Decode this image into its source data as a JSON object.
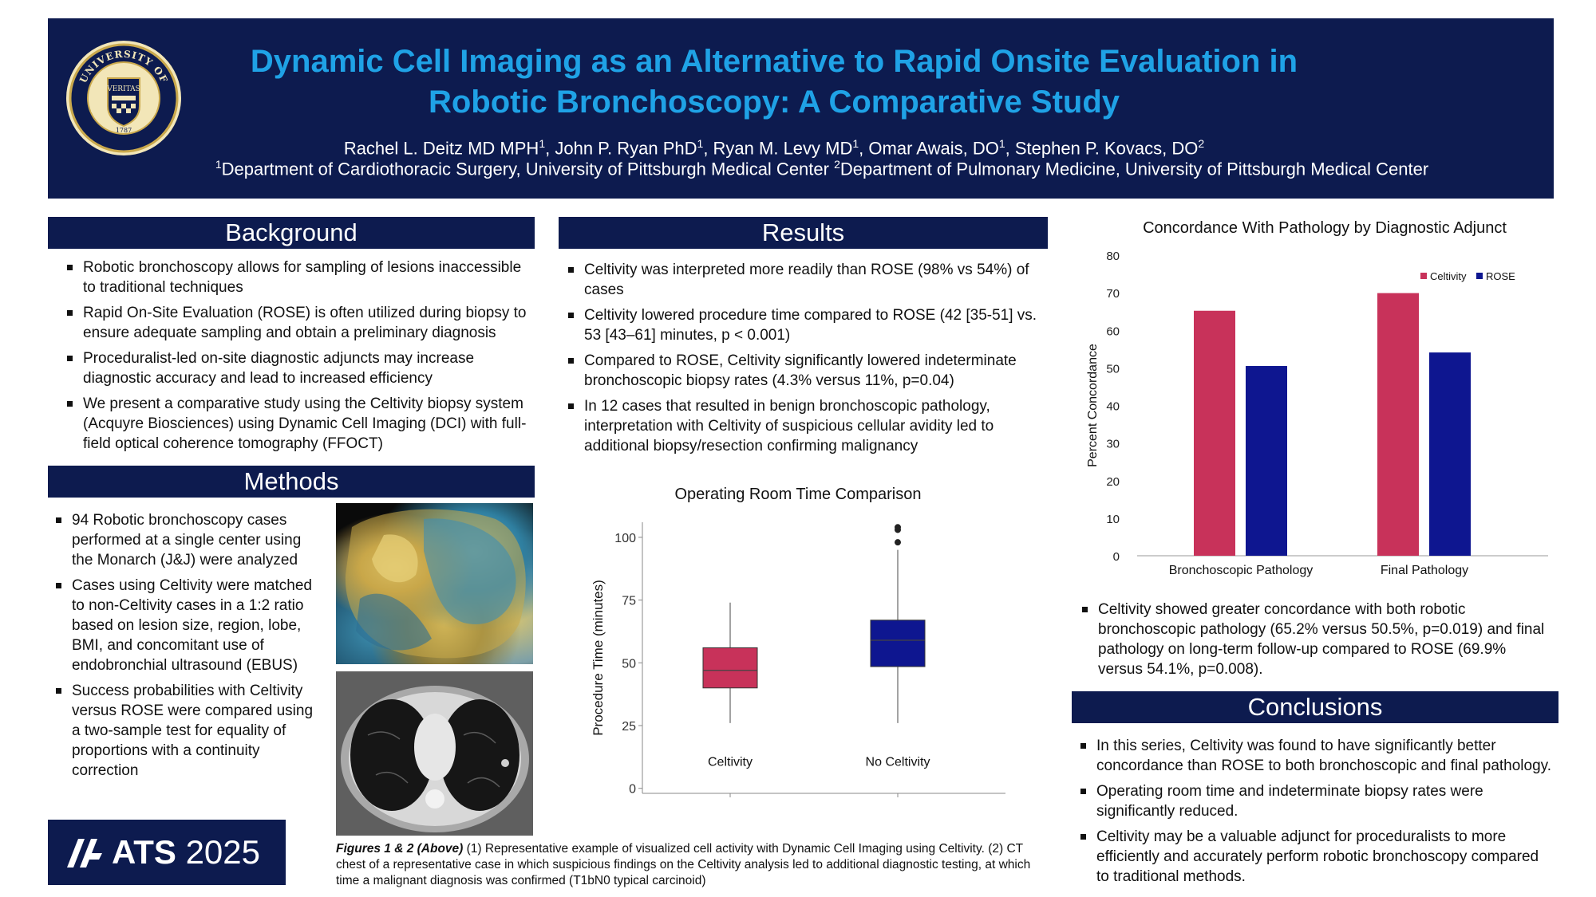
{
  "header": {
    "title": "Dynamic Cell Imaging as an Alternative to Rapid Onsite Evaluation in Robotic Bronchoscopy: A Comparative Study",
    "authors": [
      {
        "name": "Rachel L. Deitz MD MPH",
        "sup": "1"
      },
      {
        "name": "John P. Ryan PhD",
        "sup": "1"
      },
      {
        "name": "Ryan M. Levy MD",
        "sup": "1"
      },
      {
        "name": "Omar Awais, DO",
        "sup": "1"
      },
      {
        "name": "Stephen P. Kovacs, DO",
        "sup": "2"
      }
    ],
    "affiliations": [
      {
        "sup": "1",
        "text": "Department of Cardiothoracic Surgery, University of Pittsburgh Medical Center "
      },
      {
        "sup": "2",
        "text": "Department of Pulmonary Medicine, University of Pittsburgh Medical Center"
      }
    ],
    "logo": {
      "ring_text_top": "UNIVERSITY OF",
      "ring_text_bottom": "PITTSBURGH",
      "motto": "VERITAS",
      "year": "1787"
    }
  },
  "background": {
    "heading": "Background",
    "bullets": [
      "Robotic bronchoscopy allows for sampling of lesions inaccessible to traditional techniques",
      "Rapid On-Site Evaluation (ROSE) is often utilized during biopsy to ensure adequate sampling and obtain a preliminary diagnosis",
      "Proceduralist-led on-site diagnostic adjuncts may increase diagnostic accuracy and lead to increased efficiency",
      "We present a comparative study using the Celtivity biopsy system (Acquyre Biosciences) using Dynamic Cell Imaging (DCI) with full-field optical coherence tomography (FFOCT)"
    ]
  },
  "methods": {
    "heading": "Methods",
    "bullets": [
      "94 Robotic bronchoscopy cases performed at a single center using the Monarch (J&J) were analyzed",
      "Cases using Celtivity were matched to non-Celtivity cases in a 1:2 ratio based on lesion size, region, lobe, BMI, and concomitant use of endobronchial ultrasound (EBUS)",
      "Success probabilities with Celtivity versus ROSE were compared using a two-sample test for equality of proportions with a continuity correction"
    ]
  },
  "ats": {
    "name": "ATS",
    "year": "2025"
  },
  "results": {
    "heading": "Results",
    "bullets": [
      "Celtivity was interpreted more readily than ROSE (98% vs 54%) of cases",
      "Celtivity lowered procedure time compared to ROSE (42 [35-51] vs. 53 [43–61] minutes, p < 0.001)",
      "Compared to ROSE, Celtivity significantly lowered indeterminate bronchoscopic biopsy rates (4.3% versus 11%, p=0.04)",
      "In 12 cases that resulted in benign bronchoscopic pathology, interpretation with Celtivity of suspicious cellular avidity led to additional biopsy/resection confirming malignancy"
    ]
  },
  "caption": {
    "label": "Figures 1 & 2 (Above)",
    "text": " (1) Representative example of visualized cell activity with Dynamic Cell Imaging using Celtivity. (2) CT chest of a representative case in which suspicious findings on the Celtivity analysis led to additional diagnostic testing, at which time a malignant diagnosis was confirmed (T1bN0 typical carcinoid)"
  },
  "concordance_text": "Celtivity showed greater concordance with both robotic bronchoscopic pathology (65.2% versus 50.5%, p=0.019) and final pathology on long-term follow-up compared to ROSE (69.9% versus 54.1%, p=0.008).",
  "conclusions": {
    "heading": "Conclusions",
    "bullets": [
      "In this series, Celtivity was found to have significantly better concordance than ROSE to both bronchoscopic and final pathology.",
      "Operating room time and indeterminate biopsy rates were significantly reduced.",
      "Celtivity may be a valuable adjunct for proceduralists to more efficiently and accurately perform robotic bronchoscopy compared to traditional methods."
    ]
  },
  "colors": {
    "navy": "#0d1b4f",
    "title_blue": "#1fa2e6",
    "celtivity": "#c8325a",
    "rose": "#0e1690"
  },
  "chart_data": [
    {
      "type": "box",
      "title": "Operating Room Time Comparison",
      "xlabel": "",
      "ylabel": "Procedure Time (minutes)",
      "ylim": [
        -2,
        106
      ],
      "yticks": [
        0,
        25,
        50,
        75,
        100
      ],
      "grid": false,
      "categories": [
        "Celtivity",
        "No Celtivity"
      ],
      "boxes": [
        {
          "name": "Celtivity",
          "color": "#c8325a",
          "min": 26,
          "q1": 40,
          "median": 47,
          "q3": 56,
          "max": 74,
          "outliers": []
        },
        {
          "name": "No Celtivity",
          "color": "#0e1690",
          "min": 26,
          "q1": 48.5,
          "median": 59,
          "q3": 67,
          "max": 95,
          "outliers": [
            98,
            103,
            104
          ]
        }
      ]
    },
    {
      "type": "bar",
      "title": "Concordance With Pathology by Diagnostic Adjunct",
      "xlabel": "",
      "ylabel": "Percent Concordance",
      "ylim": [
        0,
        80
      ],
      "yticks": [
        0,
        10,
        20,
        30,
        40,
        50,
        60,
        70,
        80
      ],
      "grid": false,
      "legend": "top-right",
      "categories": [
        "Bronchoscopic Pathology",
        "Final Pathology"
      ],
      "series": [
        {
          "name": "Celtivity",
          "color": "#c8325a",
          "values": [
            65.2,
            69.9
          ]
        },
        {
          "name": "ROSE",
          "color": "#0e1690",
          "values": [
            50.5,
            54.1
          ]
        }
      ]
    }
  ]
}
